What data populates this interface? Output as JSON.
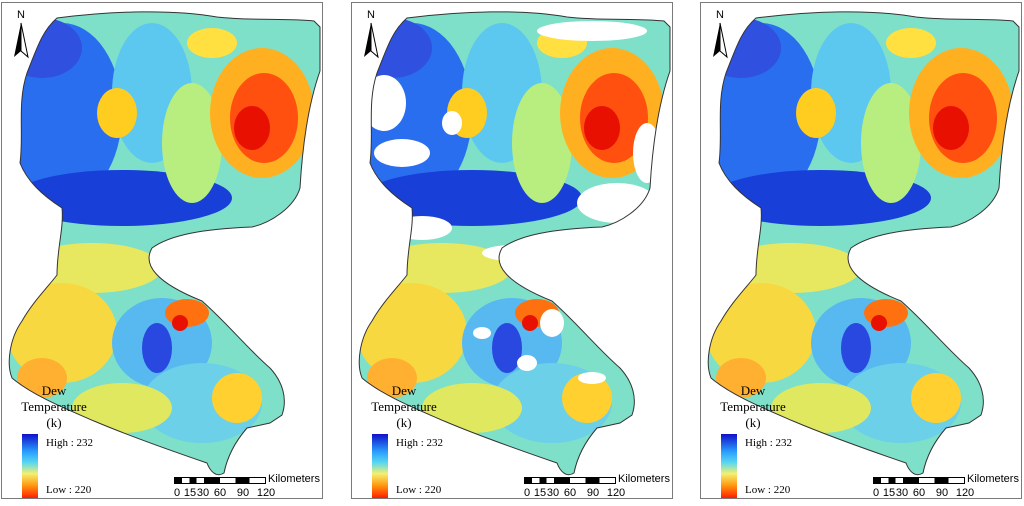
{
  "north_label": "N",
  "legend": {
    "title_lines": [
      "Dew",
      "Temperature",
      "(k)"
    ],
    "high_label": "High : 232",
    "low_label": "Low : 220",
    "high_value": 232,
    "low_value": 220,
    "colors": [
      "#1010c8",
      "#2aa0ff",
      "#5ad8f0",
      "#f4f070",
      "#ff9a10",
      "#ff2000"
    ]
  },
  "scale": {
    "unit": "Kilometers",
    "ticks": [
      "0",
      "15",
      "30",
      "60",
      "90",
      "120"
    ]
  },
  "panels": [
    {
      "has_missing_data": false
    },
    {
      "has_missing_data": true
    },
    {
      "has_missing_data": false
    }
  ]
}
